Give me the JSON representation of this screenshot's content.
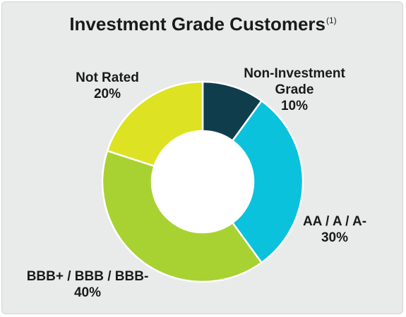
{
  "title": {
    "main": "Investment Grade Customers",
    "footnote_marker": "(1)"
  },
  "colors": {
    "background": "#e9eaea",
    "non_investment_grade": "#0f3d4c",
    "aa_a": "#0bc2dc",
    "bbb": "#a8d231",
    "not_rated": "#dde322"
  },
  "chart_data": {
    "type": "pie",
    "variant": "donut",
    "title": "Investment Grade Customers",
    "start": "12 o'clock, clockwise",
    "slices": [
      {
        "label_lines": [
          "Non-Investment",
          "Grade"
        ],
        "value": 10,
        "value_label": "10%",
        "color": "#0f3d4c"
      },
      {
        "label_lines": [
          "AA / A / A-"
        ],
        "value": 30,
        "value_label": "30%",
        "color": "#0bc2dc"
      },
      {
        "label_lines": [
          "BBB+ / BBB / BBB-"
        ],
        "value": 40,
        "value_label": "40%",
        "color": "#a8d231"
      },
      {
        "label_lines": [
          "Not Rated"
        ],
        "value": 20,
        "value_label": "20%",
        "color": "#dde322"
      }
    ]
  }
}
